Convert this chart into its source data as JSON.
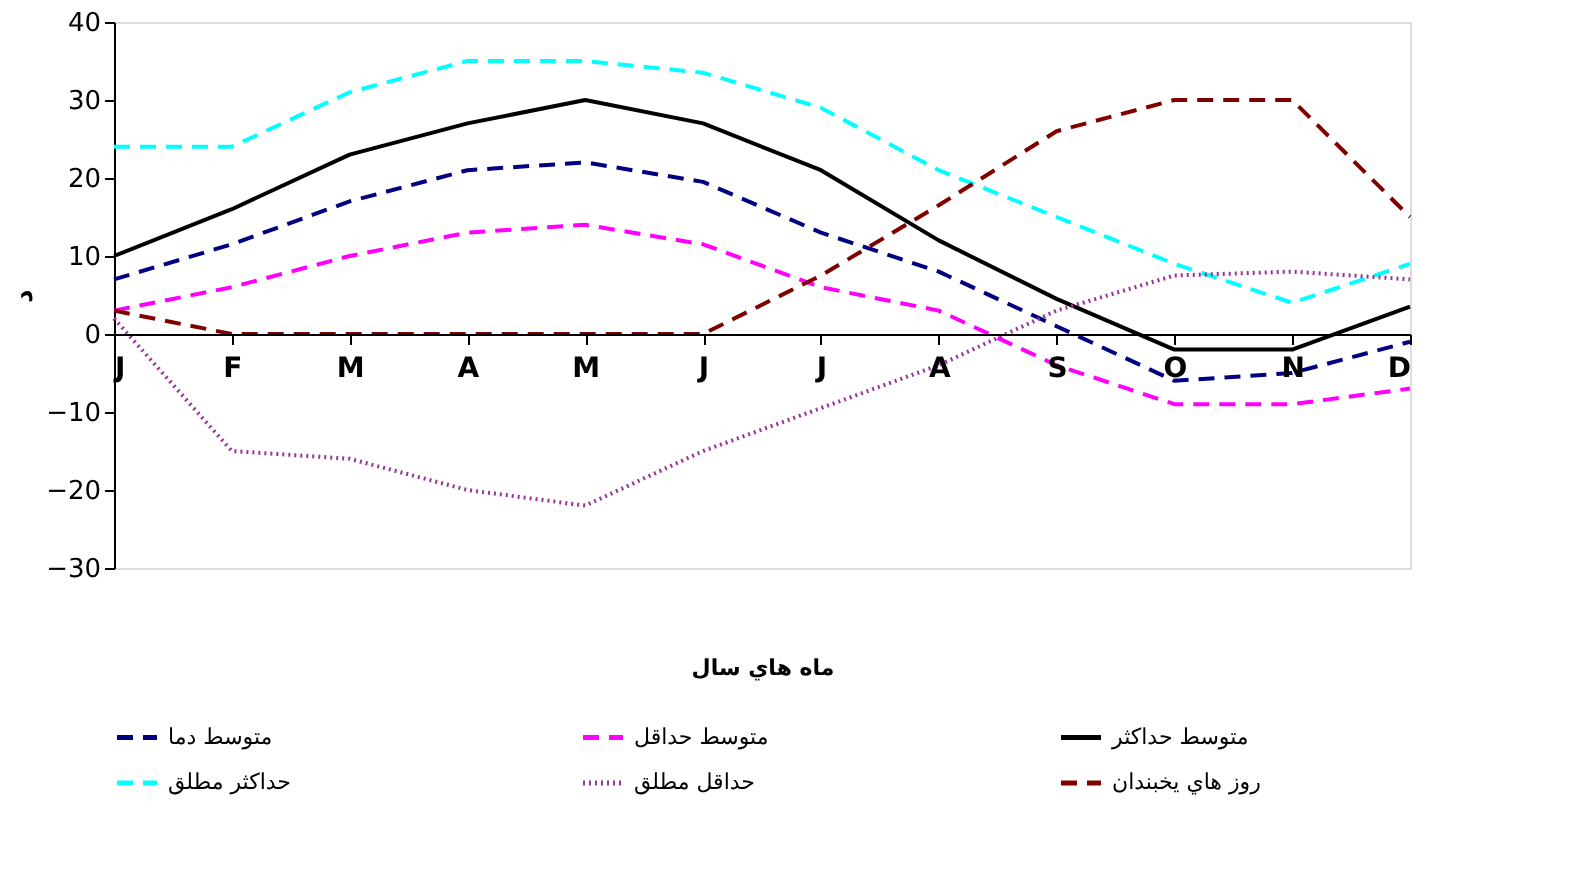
{
  "chart_data": {
    "type": "line",
    "xlabel": "ماه هاي سال",
    "ylabel": "د",
    "categories": [
      "J",
      "F",
      "M",
      "A",
      "M",
      "J",
      "J",
      "A",
      "S",
      "O",
      "N",
      "D"
    ],
    "ylim": [
      -30,
      40
    ],
    "yticks": [
      -30,
      -20,
      -10,
      0,
      10,
      20,
      30,
      40
    ],
    "grid": false,
    "legend": "bottom",
    "marker": "none",
    "series": [
      {
        "name": "متوسط دما",
        "color": "#000080",
        "line_style": "dashed",
        "values": [
          7,
          11.5,
          17,
          21,
          22,
          19.5,
          13,
          8,
          1,
          -6,
          -5,
          -1
        ]
      },
      {
        "name": "متوسط حداقل",
        "color": "#ff00ff",
        "line_style": "dashed",
        "values": [
          3,
          6,
          10,
          13,
          14,
          11.5,
          6,
          3,
          -4,
          -9,
          -9,
          -7
        ]
      },
      {
        "name": "متوسط حداكثر",
        "color": "#000000",
        "line_style": "solid",
        "values": [
          10,
          16,
          23,
          27,
          30,
          27,
          21,
          12,
          4.5,
          -2,
          -2,
          3.5
        ]
      },
      {
        "name": "حداكثر مطلق",
        "color": "#00ffff",
        "line_style": "dashed",
        "values": [
          24,
          24,
          31,
          35,
          35,
          33.5,
          29,
          21,
          15,
          9,
          4,
          9
        ]
      },
      {
        "name": "حداقل مطلق",
        "color": "#993399",
        "line_style": "dotted",
        "values": [
          2,
          -15,
          -16,
          -20,
          -22,
          -15,
          -9.5,
          -4,
          3,
          7.5,
          8,
          7
        ]
      },
      {
        "name": "روز هاي يخبندان",
        "color": "#800000",
        "line_style": "dashed",
        "values": [
          3,
          0,
          0,
          0,
          0,
          0,
          7.5,
          16.5,
          26,
          30,
          30,
          15
        ]
      }
    ]
  }
}
